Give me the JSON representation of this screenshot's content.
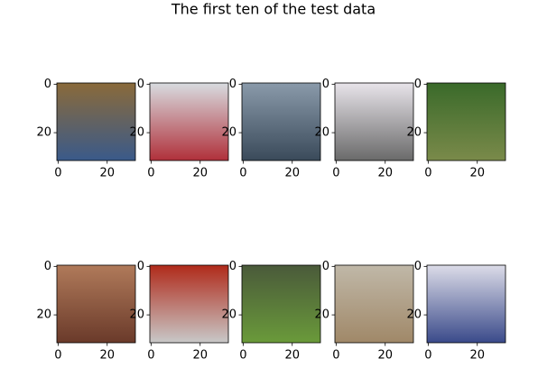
{
  "title": "The first ten of the test data",
  "chart_data": [
    {
      "type": "image",
      "colors": [
        "#8a6a3a",
        "#3a5a8a"
      ],
      "xlim": [
        -0.5,
        31.5
      ],
      "ylim": [
        31.5,
        -0.5
      ],
      "xticks": [
        0,
        20
      ],
      "yticks": [
        0,
        20
      ]
    },
    {
      "type": "image",
      "colors": [
        "#d8dce0",
        "#b0303a"
      ],
      "xlim": [
        -0.5,
        31.5
      ],
      "ylim": [
        31.5,
        -0.5
      ],
      "xticks": [
        0,
        20
      ],
      "yticks": [
        0,
        20
      ]
    },
    {
      "type": "image",
      "colors": [
        "#8a9aaa",
        "#3a4a5a"
      ],
      "xlim": [
        -0.5,
        31.5
      ],
      "ylim": [
        31.5,
        -0.5
      ],
      "xticks": [
        0,
        20
      ],
      "yticks": [
        0,
        20
      ]
    },
    {
      "type": "image",
      "colors": [
        "#e8e4ea",
        "#6a6a6a"
      ],
      "xlim": [
        -0.5,
        31.5
      ],
      "ylim": [
        31.5,
        -0.5
      ],
      "xticks": [
        0,
        20
      ],
      "yticks": [
        0,
        20
      ]
    },
    {
      "type": "image",
      "colors": [
        "#3a6a2a",
        "#7a8a4a"
      ],
      "xlim": [
        -0.5,
        31.5
      ],
      "ylim": [
        31.5,
        -0.5
      ],
      "xticks": [
        0,
        20
      ],
      "yticks": [
        0,
        20
      ]
    },
    {
      "type": "image",
      "colors": [
        "#b07a5a",
        "#6a3a2a"
      ],
      "xlim": [
        -0.5,
        31.5
      ],
      "ylim": [
        31.5,
        -0.5
      ],
      "xticks": [
        0,
        20
      ],
      "yticks": [
        0,
        20
      ]
    },
    {
      "type": "image",
      "colors": [
        "#b02a1a",
        "#c8c8c8"
      ],
      "xlim": [
        -0.5,
        31.5
      ],
      "ylim": [
        31.5,
        -0.5
      ],
      "xticks": [
        0,
        20
      ],
      "yticks": [
        0,
        20
      ]
    },
    {
      "type": "image",
      "colors": [
        "#4a5a3a",
        "#6a9a3a"
      ],
      "xlim": [
        -0.5,
        31.5
      ],
      "ylim": [
        31.5,
        -0.5
      ],
      "xticks": [
        0,
        20
      ],
      "yticks": [
        0,
        20
      ]
    },
    {
      "type": "image",
      "colors": [
        "#c0b8a8",
        "#a08868"
      ],
      "xlim": [
        -0.5,
        31.5
      ],
      "ylim": [
        31.5,
        -0.5
      ],
      "xticks": [
        0,
        20
      ],
      "yticks": [
        0,
        20
      ]
    },
    {
      "type": "image",
      "colors": [
        "#dcdce8",
        "#3a4a8a"
      ],
      "xlim": [
        -0.5,
        31.5
      ],
      "ylim": [
        31.5,
        -0.5
      ],
      "xticks": [
        0,
        20
      ],
      "yticks": [
        0,
        20
      ]
    }
  ]
}
